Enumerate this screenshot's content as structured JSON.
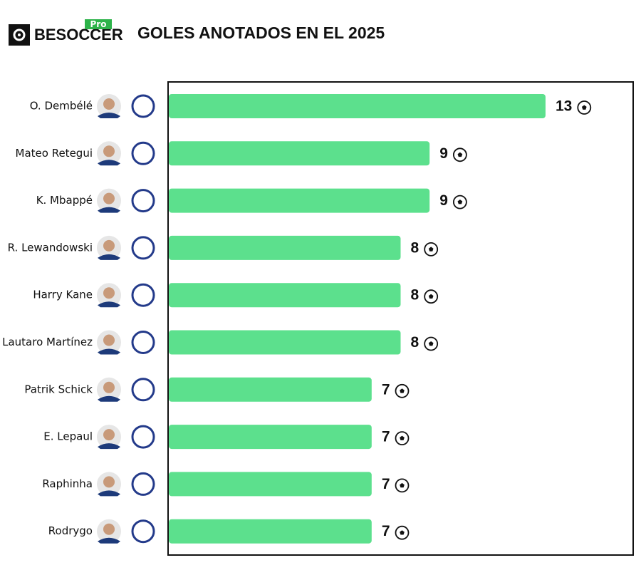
{
  "brand": "BESOCCER",
  "brand_tag": "Pro",
  "chart_data": {
    "type": "bar",
    "orientation": "horizontal",
    "title": "GOLES ANOTADOS EN EL 2025",
    "categories": [
      "O. Dembélé",
      "Mateo Retegui",
      "K. Mbappé",
      "R. Lewandowski",
      "Harry Kane",
      "Lautaro Martínez",
      "Patrik Schick",
      "E. Lepaul",
      "Raphinha",
      "Rodrygo"
    ],
    "values": [
      13,
      9,
      9,
      8,
      8,
      8,
      7,
      7,
      7,
      7
    ],
    "color": "#5ce08d",
    "xlim": [
      0,
      16
    ]
  }
}
